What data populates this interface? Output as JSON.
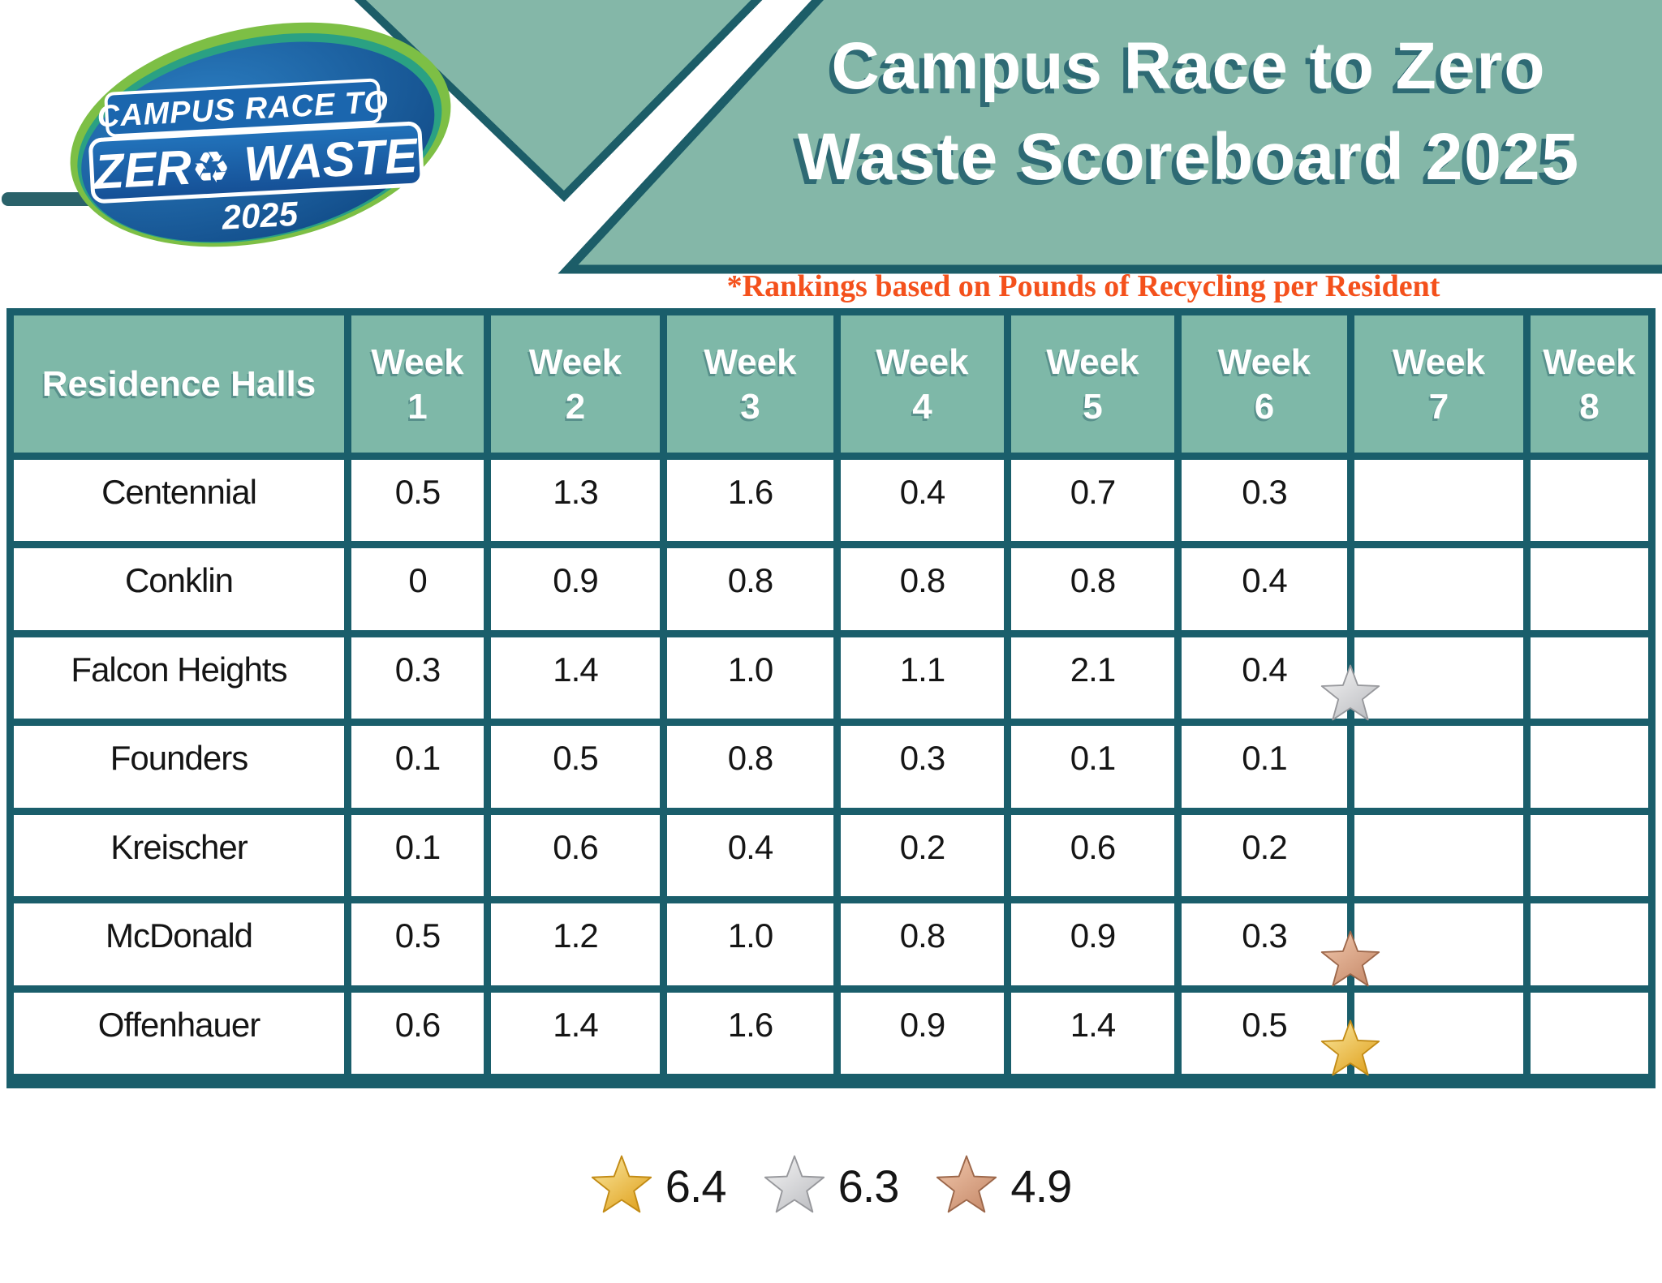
{
  "logo": {
    "line1": "CAMPUS RACE TO",
    "line2_prefix": "ZER",
    "recycle_icon": "♻",
    "line2_suffix": " WASTE",
    "year": "2025"
  },
  "banner": {
    "title_line1": "Campus Race to Zero",
    "title_line2": "Waste Scoreboard 2025",
    "background": "#84b7a8",
    "border": "#1c5d68"
  },
  "subtitle": {
    "text": "*Rankings based on Pounds of Recycling per Resident",
    "color": "#f4511c"
  },
  "table": {
    "corner_header": "Residence Halls",
    "week_label": "Week",
    "week_numbers": [
      "1",
      "2",
      "3",
      "4",
      "5",
      "6",
      "7",
      "8"
    ],
    "header_bg": "#7eb8a8",
    "border_color": "#1a5e6b",
    "rows": [
      {
        "name": "Centennial",
        "values": [
          "0.5",
          "1.3",
          "1.6",
          "0.4",
          "0.7",
          "0.3",
          "",
          ""
        ],
        "star": null
      },
      {
        "name": "Conklin",
        "values": [
          "0",
          "0.9",
          "0.8",
          "0.8",
          "0.8",
          "0.4",
          "",
          ""
        ],
        "star": null
      },
      {
        "name": "Falcon Heights",
        "values": [
          "0.3",
          "1.4",
          "1.0",
          "1.1",
          "2.1",
          "0.4",
          "",
          ""
        ],
        "star": "silver"
      },
      {
        "name": "Founders",
        "values": [
          "0.1",
          "0.5",
          "0.8",
          "0.3",
          "0.1",
          "0.1",
          "",
          ""
        ],
        "star": null
      },
      {
        "name": "Kreischer",
        "values": [
          "0.1",
          "0.6",
          "0.4",
          "0.2",
          "0.6",
          "0.2",
          "",
          ""
        ],
        "star": null
      },
      {
        "name": "McDonald",
        "values": [
          "0.5",
          "1.2",
          "1.0",
          "0.8",
          "0.9",
          "0.3",
          "",
          ""
        ],
        "star": "bronze"
      },
      {
        "name": "Offenhauer",
        "values": [
          "0.6",
          "1.4",
          "1.6",
          "0.9",
          "1.4",
          "0.5",
          "",
          ""
        ],
        "star": "gold"
      }
    ]
  },
  "stars": {
    "gold": {
      "fill_light": "#fbe9a2",
      "fill_dark": "#e0a321",
      "stroke": "#c28b15"
    },
    "silver": {
      "fill_light": "#f6f6f6",
      "fill_dark": "#bdbec2",
      "stroke": "#97989c"
    },
    "bronze": {
      "fill_light": "#f2c9ae",
      "fill_dark": "#c78b6b",
      "stroke": "#9c674a"
    }
  },
  "legend": [
    {
      "star": "gold",
      "value": "6.4"
    },
    {
      "star": "silver",
      "value": "6.3"
    },
    {
      "star": "bronze",
      "value": "4.9"
    }
  ],
  "chart_data": {
    "type": "table",
    "title": "Campus Race to Zero Waste Scoreboard 2025",
    "note": "*Rankings based on Pounds of Recycling per Resident",
    "columns": [
      "Residence Halls",
      "Week 1",
      "Week 2",
      "Week 3",
      "Week 4",
      "Week 5",
      "Week 6",
      "Week 7",
      "Week 8"
    ],
    "rows": [
      {
        "hall": "Centennial",
        "values": [
          0.5,
          1.3,
          1.6,
          0.4,
          0.7,
          0.3,
          null,
          null
        ]
      },
      {
        "hall": "Conklin",
        "values": [
          0,
          0.9,
          0.8,
          0.8,
          0.8,
          0.4,
          null,
          null
        ]
      },
      {
        "hall": "Falcon Heights",
        "values": [
          0.3,
          1.4,
          1.0,
          1.1,
          2.1,
          0.4,
          null,
          null
        ]
      },
      {
        "hall": "Founders",
        "values": [
          0.1,
          0.5,
          0.8,
          0.3,
          0.1,
          0.1,
          null,
          null
        ]
      },
      {
        "hall": "Kreischer",
        "values": [
          0.1,
          0.6,
          0.4,
          0.2,
          0.6,
          0.2,
          null,
          null
        ]
      },
      {
        "hall": "McDonald",
        "values": [
          0.5,
          1.2,
          1.0,
          0.8,
          0.9,
          0.3,
          null,
          null
        ]
      },
      {
        "hall": "Offenhauer",
        "values": [
          0.6,
          1.4,
          1.6,
          0.9,
          1.4,
          0.5,
          null,
          null
        ]
      }
    ],
    "medals": {
      "gold": {
        "hall": "Offenhauer",
        "total": 6.4
      },
      "silver": {
        "hall": "Falcon Heights",
        "total": 6.3
      },
      "bronze": {
        "hall": "McDonald",
        "total": 4.9
      }
    }
  }
}
